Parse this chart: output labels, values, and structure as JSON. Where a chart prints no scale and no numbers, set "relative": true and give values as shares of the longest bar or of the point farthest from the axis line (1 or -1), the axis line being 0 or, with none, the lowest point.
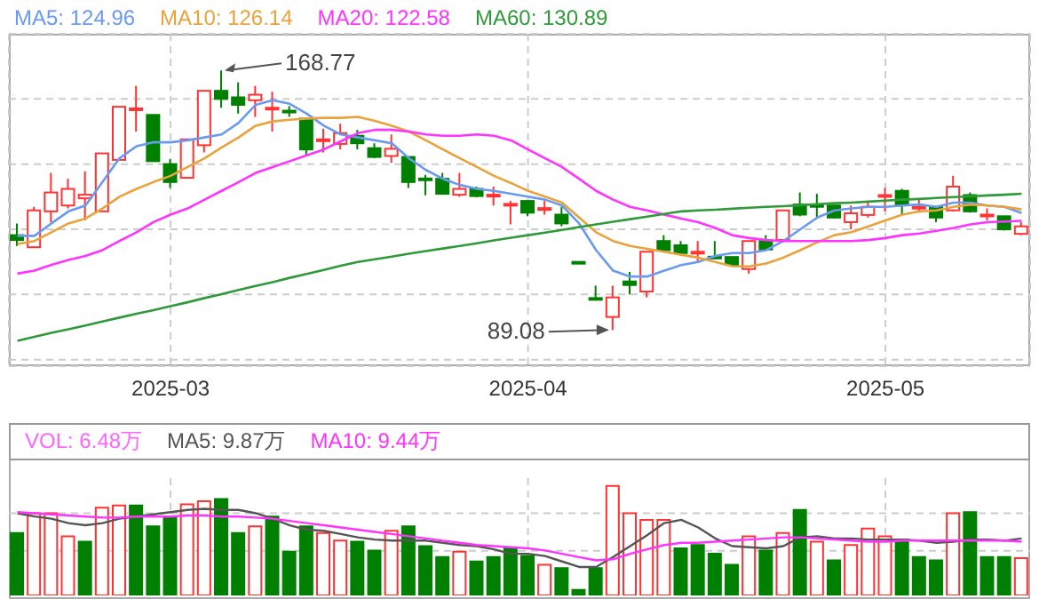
{
  "chart_data": [
    {
      "type": "candlestick",
      "categories": [
        null,
        null,
        null,
        null,
        null,
        null,
        null,
        null,
        null,
        "2025-03",
        null,
        null,
        null,
        null,
        null,
        null,
        null,
        null,
        null,
        null,
        null,
        null,
        null,
        null,
        null,
        null,
        null,
        null,
        null,
        null,
        "2025-04",
        null,
        null,
        null,
        null,
        null,
        null,
        null,
        null,
        null,
        null,
        null,
        null,
        null,
        null,
        null,
        null,
        null,
        null,
        null,
        null,
        "2025-05",
        null,
        null,
        null,
        null,
        null,
        null,
        null,
        null
      ],
      "ohlc": [
        [
          118.2,
          121.8,
          114.9,
          116.7
        ],
        [
          114.5,
          126.9,
          114.5,
          125.8
        ],
        [
          125.5,
          137.3,
          122.2,
          131.3
        ],
        [
          127.3,
          135.5,
          126.4,
          132.4
        ],
        [
          129.5,
          137.8,
          122.7,
          130.6
        ],
        [
          125.5,
          143.3,
          125.5,
          143.3
        ],
        [
          141.3,
          157.6,
          141.3,
          157.6
        ],
        [
          156.7,
          164.0,
          150.0,
          157.1
        ],
        [
          155.1,
          155.1,
          140.9,
          140.9
        ],
        [
          140.0,
          141.5,
          132.7,
          134.5
        ],
        [
          135.8,
          147.6,
          135.8,
          147.6
        ],
        [
          145.8,
          162.5,
          143.6,
          162.5
        ],
        [
          162.5,
          168.77,
          157.3,
          160.0
        ],
        [
          160.5,
          165.1,
          155.5,
          158.2
        ],
        [
          159.6,
          164.0,
          154.5,
          161.3
        ],
        [
          157.1,
          162.2,
          150.0,
          157.3
        ],
        [
          156.4,
          157.8,
          154.5,
          156.2
        ],
        [
          154.0,
          154.0,
          142.7,
          144.5
        ],
        [
          147.3,
          150.9,
          143.6,
          147.6
        ],
        [
          146.2,
          152.4,
          144.5,
          149.5
        ],
        [
          148.7,
          150.5,
          144.5,
          146.4
        ],
        [
          144.9,
          146.4,
          141.8,
          142.2
        ],
        [
          142.5,
          149.1,
          140.4,
          144.7
        ],
        [
          142.2,
          142.2,
          132.7,
          134.5
        ],
        [
          135.6,
          136.7,
          130.4,
          135.3
        ],
        [
          135.5,
          137.3,
          130.6,
          130.9
        ],
        [
          130.6,
          137.3,
          130.0,
          132.4
        ],
        [
          132.4,
          133.1,
          129.8,
          130.2
        ],
        [
          130.2,
          133.1,
          127.3,
          130.6
        ],
        [
          127.5,
          128.7,
          121.5,
          127.8
        ],
        [
          128.7,
          128.7,
          124.0,
          125.1
        ],
        [
          126.0,
          128.7,
          124.5,
          126.5
        ],
        [
          124.5,
          126.9,
          120.9,
          121.8
        ],
        [
          110.0,
          110.0,
          109.8,
          109.8
        ],
        [
          98.9,
          102.7,
          98.6,
          98.7
        ],
        [
          93.1,
          102.7,
          89.08,
          99.1
        ],
        [
          104.0,
          106.9,
          100.0,
          102.9
        ],
        [
          100.9,
          113.1,
          99.1,
          113.1
        ],
        [
          116.4,
          118.2,
          113.1,
          113.6
        ],
        [
          115.1,
          116.4,
          111.8,
          112.7
        ],
        [
          112.7,
          116.4,
          110.0,
          113.1
        ],
        [
          111.6,
          116.4,
          110.9,
          111.3
        ],
        [
          111.5,
          111.5,
          108.7,
          109.1
        ],
        [
          107.8,
          116.4,
          106.4,
          116.4
        ],
        [
          116.4,
          118.2,
          113.5,
          113.8
        ],
        [
          116.7,
          125.8,
          116.0,
          125.8
        ],
        [
          127.6,
          131.3,
          124.0,
          124.5
        ],
        [
          127.6,
          130.9,
          123.3,
          126.9
        ],
        [
          127.3,
          127.3,
          123.3,
          123.6
        ],
        [
          122.2,
          127.3,
          120.0,
          124.9
        ],
        [
          124.4,
          128.7,
          123.6,
          126.9
        ],
        [
          130.0,
          132.7,
          125.5,
          130.5
        ],
        [
          131.8,
          132.4,
          124.5,
          127.6
        ],
        [
          126.5,
          129.1,
          125.1,
          126.9
        ],
        [
          126.9,
          126.9,
          122.2,
          123.6
        ],
        [
          125.8,
          136.4,
          125.5,
          133.1
        ],
        [
          130.5,
          131.3,
          125.1,
          125.5
        ],
        [
          124.4,
          126.4,
          122.7,
          124.5
        ],
        [
          124.0,
          124.0,
          119.6,
          120.0
        ],
        [
          118.6,
          122.2,
          118.2,
          120.9
        ]
      ],
      "colors": [
        "#008000",
        "#ff3333",
        "#ff3333",
        "#ff3333",
        "#ff3333",
        "#ff3333",
        "#ff3333",
        "#ff3333",
        "#008000",
        "#008000",
        "#ff3333",
        "#ff3333",
        "#008000",
        "#008000",
        "#ff3333",
        "#ff3333",
        "#008000",
        "#008000",
        "#ff3333",
        "#ff3333",
        "#008000",
        "#008000",
        "#ff3333",
        "#008000",
        "#008000",
        "#008000",
        "#ff3333",
        "#008000",
        "#ff3333",
        "#ff3333",
        "#008000",
        "#ff3333",
        "#008000",
        "#008000",
        "#008000",
        "#ff3333",
        "#008000",
        "#ff3333",
        "#008000",
        "#008000",
        "#ff3333",
        "#008000",
        "#008000",
        "#ff3333",
        "#008000",
        "#ff3333",
        "#008000",
        "#008000",
        "#008000",
        "#ff3333",
        "#ff3333",
        "#ff3333",
        "#008000",
        "#ff3333",
        "#008000",
        "#ff3333",
        "#008000",
        "#ff3333",
        "#008000",
        "#ff3333"
      ],
      "series": [
        {
          "type": "line",
          "name": "MA5: 124.96",
          "color": "#6a9af0",
          "values": [
            118.0,
            118.0,
            121.8,
            125.5,
            127.3,
            134.5,
            141.8,
            145.5,
            146.7,
            146.7,
            147.3,
            148.2,
            149.1,
            152.7,
            158.2,
            159.6,
            158.5,
            155.5,
            151.8,
            149.1,
            148.2,
            147.3,
            146.4,
            141.8,
            138.2,
            135.5,
            133.6,
            132.4,
            131.8,
            130.9,
            130.0,
            129.1,
            127.3,
            121.8,
            113.6,
            107.3,
            105.5,
            105.5,
            107.3,
            109.0,
            110.0,
            111.8,
            112.7,
            112.7,
            113.6,
            116.4,
            120.0,
            123.6,
            125.8,
            126.4,
            126.9,
            126.9,
            127.3,
            127.6,
            126.9,
            128.2,
            128.2,
            127.3,
            126.9,
            125.0
          ]
        },
        {
          "type": "line",
          "name": "MA10: 126.14",
          "color": "#e8a33d",
          "values": [
            115.5,
            116.4,
            119.1,
            121.8,
            123.3,
            126.4,
            130.0,
            132.4,
            134.5,
            136.4,
            139.1,
            141.8,
            145.1,
            148.2,
            151.8,
            153.1,
            153.6,
            154.0,
            154.2,
            154.2,
            154.5,
            153.3,
            151.8,
            150.0,
            147.3,
            144.5,
            141.8,
            139.1,
            136.4,
            134.2,
            131.8,
            130.0,
            128.2,
            123.6,
            119.1,
            116.4,
            114.9,
            114.0,
            113.1,
            112.2,
            111.3,
            110.0,
            108.7,
            108.6,
            109.5,
            111.3,
            113.6,
            116.0,
            118.2,
            119.1,
            120.9,
            122.7,
            124.5,
            125.5,
            125.8,
            126.9,
            127.6,
            127.3,
            126.9,
            126.1
          ]
        },
        {
          "type": "line",
          "name": "MA20: 122.58",
          "color": "#ff33ff",
          "values": [
            106.4,
            107.3,
            109.1,
            110.6,
            111.8,
            113.6,
            116.4,
            119.1,
            122.2,
            124.5,
            126.4,
            129.1,
            131.8,
            134.5,
            137.3,
            139.1,
            140.9,
            142.7,
            144.5,
            147.0,
            149.5,
            150.5,
            150.5,
            150.0,
            149.1,
            148.7,
            148.7,
            149.1,
            148.7,
            147.3,
            144.5,
            141.8,
            139.1,
            135.5,
            131.8,
            129.1,
            126.9,
            125.8,
            124.5,
            123.3,
            122.2,
            120.4,
            118.2,
            117.3,
            116.7,
            116.4,
            116.4,
            116.4,
            116.4,
            116.4,
            116.7,
            117.3,
            118.2,
            118.7,
            119.5,
            120.4,
            121.5,
            122.2,
            122.4,
            122.6
          ]
        },
        {
          "type": "line",
          "name": "MA60: 130.89",
          "color": "#2e9a3a",
          "values": [
            85.8,
            87.0,
            88.2,
            89.3,
            90.5,
            91.7,
            92.9,
            94.1,
            95.2,
            96.4,
            97.6,
            98.9,
            100.1,
            101.4,
            102.6,
            103.8,
            105.1,
            106.3,
            107.5,
            108.8,
            110.0,
            110.8,
            111.6,
            112.5,
            113.3,
            114.1,
            114.9,
            115.7,
            116.6,
            117.4,
            118.2,
            119.0,
            119.8,
            120.7,
            121.5,
            122.3,
            123.1,
            123.9,
            124.7,
            125.5,
            125.8,
            126.0,
            126.3,
            126.6,
            126.9,
            127.1,
            127.4,
            127.7,
            128.0,
            128.2,
            128.5,
            128.8,
            129.1,
            129.3,
            129.6,
            129.9,
            130.1,
            130.4,
            130.6,
            130.9
          ]
        }
      ],
      "annotations": [
        "168.77",
        "89.08"
      ],
      "ylim": [
        78,
        180
      ],
      "yticks": [
        {
          "value": 80,
          "label": null
        },
        {
          "value": 100,
          "label": null
        },
        {
          "value": 120,
          "label": null
        },
        {
          "value": 140,
          "label": null
        },
        {
          "value": 160,
          "label": null
        }
      ],
      "tick_labels": "x",
      "grid": true,
      "legend": "top left",
      "marker": "none"
    },
    {
      "type": "bar",
      "relative": true,
      "categories": [
        null,
        null,
        null,
        null,
        null,
        null,
        null,
        null,
        null,
        null,
        null,
        null,
        null,
        null,
        null,
        null,
        null,
        null,
        null,
        null,
        null,
        null,
        null,
        null,
        null,
        null,
        null,
        null,
        null,
        null,
        null,
        null,
        null,
        null,
        null,
        null,
        null,
        null,
        null,
        null,
        null,
        null,
        null,
        null,
        null,
        null,
        null,
        null,
        null,
        null,
        null,
        null,
        null,
        null,
        null,
        null,
        null,
        null,
        null,
        null
      ],
      "series": [
        {
          "name": "VOL: 6.48万",
          "values": [
            0.57,
            0.75,
            0.75,
            0.54,
            0.49,
            0.8,
            0.82,
            0.82,
            0.63,
            0.71,
            0.83,
            0.86,
            0.88,
            0.57,
            0.63,
            0.72,
            0.4,
            0.63,
            0.57,
            0.5,
            0.49,
            0.41,
            0.59,
            0.63,
            0.45,
            0.35,
            0.4,
            0.31,
            0.35,
            0.43,
            0.36,
            0.28,
            0.25,
            0.05,
            0.25,
            1,
            0.75,
            0.69,
            0.69,
            0.43,
            0.46,
            0.38,
            0.28,
            0.54,
            0.41,
            0.57,
            0.78,
            0.49,
            0.32,
            0.46,
            0.61,
            0.54,
            0.51,
            0.35,
            0.32,
            0.75,
            0.76,
            0.35,
            0.35,
            0.34
          ],
          "colors": [
            "#008000",
            "#ff3333",
            "#ff3333",
            "#ff3333",
            "#008000",
            "#ff3333",
            "#ff3333",
            "#008000",
            "#008000",
            "#008000",
            "#ff3333",
            "#ff3333",
            "#008000",
            "#008000",
            "#ff3333",
            "#008000",
            "#008000",
            "#008000",
            "#ff3333",
            "#ff3333",
            "#008000",
            "#008000",
            "#ff3333",
            "#008000",
            "#008000",
            "#008000",
            "#ff3333",
            "#008000",
            "#008000",
            "#008000",
            "#008000",
            "#ff3333",
            "#008000",
            "#008000",
            "#008000",
            "#ff3333",
            "#ff3333",
            "#ff3333",
            "#ff3333",
            "#008000",
            "#008000",
            "#008000",
            "#008000",
            "#ff3333",
            "#008000",
            "#ff3333",
            "#008000",
            "#ff3333",
            "#008000",
            "#ff3333",
            "#ff3333",
            "#ff3333",
            "#008000",
            "#008000",
            "#008000",
            "#ff3333",
            "#008000",
            "#008000",
            "#008000",
            "#ff3333"
          ]
        },
        {
          "type": "line",
          "name": "MA5: 9.87万",
          "color": "#555555",
          "values": [
            0.75,
            0.72,
            0.7,
            0.66,
            0.64,
            0.66,
            0.7,
            0.72,
            0.74,
            0.76,
            0.78,
            0.79,
            0.78,
            0.78,
            0.75,
            0.7,
            0.64,
            0.6,
            0.59,
            0.56,
            0.53,
            0.51,
            0.5,
            0.5,
            0.5,
            0.48,
            0.46,
            0.45,
            0.42,
            0.38,
            0.38,
            0.36,
            0.31,
            0.26,
            0.26,
            0.35,
            0.45,
            0.55,
            0.66,
            0.69,
            0.62,
            0.52,
            0.45,
            0.44,
            0.43,
            0.45,
            0.53,
            0.54,
            0.52,
            0.52,
            0.51,
            0.51,
            0.51,
            0.5,
            0.48,
            0.49,
            0.51,
            0.51,
            0.5,
            0.52
          ]
        },
        {
          "type": "line",
          "name": "MA10: 9.44万",
          "color": "#ff33ff",
          "values": [
            0.76,
            0.75,
            0.74,
            0.73,
            0.72,
            0.71,
            0.71,
            0.72,
            0.72,
            0.72,
            0.73,
            0.73,
            0.72,
            0.72,
            0.71,
            0.7,
            0.68,
            0.66,
            0.64,
            0.62,
            0.6,
            0.58,
            0.56,
            0.54,
            0.52,
            0.5,
            0.48,
            0.46,
            0.45,
            0.44,
            0.43,
            0.41,
            0.38,
            0.35,
            0.32,
            0.33,
            0.38,
            0.42,
            0.46,
            0.48,
            0.48,
            0.49,
            0.5,
            0.51,
            0.52,
            0.53,
            0.53,
            0.52,
            0.51,
            0.5,
            0.49,
            0.49,
            0.5,
            0.5,
            0.5,
            0.5,
            0.5,
            0.5,
            0.5,
            0.49
          ]
        }
      ],
      "tick_labels": false,
      "grid": true,
      "legend": "top left",
      "marker": "none"
    }
  ]
}
